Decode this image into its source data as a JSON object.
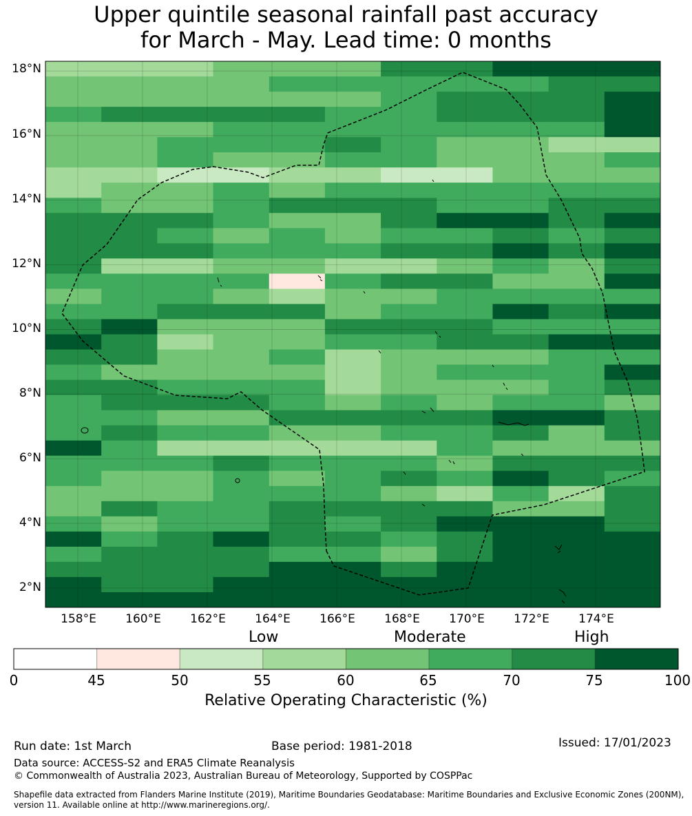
{
  "title": {
    "line1": "Upper quintile seasonal rainfall past accuracy",
    "line2": "for March - May. Lead time: 0 months"
  },
  "map": {
    "lat_labels": [
      "18°N",
      "16°N",
      "14°N",
      "12°N",
      "10°N",
      "8°N",
      "6°N",
      "4°N",
      "2°N"
    ],
    "lon_labels": [
      "158°E",
      "160°E",
      "162°E",
      "164°E",
      "166°E",
      "168°E",
      "170°E",
      "172°E",
      "174°E"
    ],
    "lon_range": [
      157.0,
      176.0
    ],
    "lat_range": [
      1.4,
      18.3
    ],
    "boundary_name": "Exclusive Economic Zone (200NM)",
    "colors": [
      "#ffffff",
      "#fee8e0",
      "#c8e9c1",
      "#a3da9a",
      "#74c476",
      "#41ab5d",
      "#228b45",
      "#00572e"
    ],
    "grid_rows_north_to_south": [
      "33344466777",
      "44445555566",
      "44444456667",
      "56666556667",
      "44455555557",
      "44555654433",
      "44544554445",
      "33223322444",
      "34454555555",
      "54456665566",
      "66654467767",
      "66545455656",
      "66655566767",
      "63344334546",
      "55551566447",
      "45543445555",
      "55666455767",
      "67444666555",
      "76344556677",
      "66445344455",
      "54444345557",
      "66555344456",
      "56665454554",
      "55446666776",
      "56554455646",
      "75333335444",
      "55565554666",
      "54454565765",
      "44455543536",
      "46556666446",
      "54556567776",
      "75676656777",
      "56665546777",
      "66667767777",
      "76677777777",
      "77777777777"
    ]
  },
  "legend": {
    "categories": [
      "Low",
      "Moderate",
      "High"
    ],
    "ticks": [
      "0",
      "45",
      "50",
      "55",
      "60",
      "65",
      "70",
      "75",
      "100"
    ],
    "colors": [
      "#ffffff",
      "#fee8e0",
      "#c8e9c1",
      "#a3da9a",
      "#74c476",
      "#41ab5d",
      "#238b45",
      "#00572e"
    ],
    "title": "Relative Operating Characteristic (%)"
  },
  "footer": {
    "run_date": "Run date: 1st March",
    "base_period": "Base period: 1981-2018",
    "issued": "Issued: 17/01/2023",
    "data_source": "Data source: ACCESS-S2 and ERA5 Climate Reanalysis",
    "copyright": "© Commonwealth of Australia 2023, Australian Bureau of Meteorology, Supported by COSPPac",
    "shapefile_line1": "Shapefile data extracted from Flanders Marine Institute (2019), Maritime Boundaries Geodatabase: Maritime Boundaries and Exclusive Economic Zones (200NM),",
    "shapefile_line2": "version 11. Available online at http://www.marineregions.org/."
  }
}
